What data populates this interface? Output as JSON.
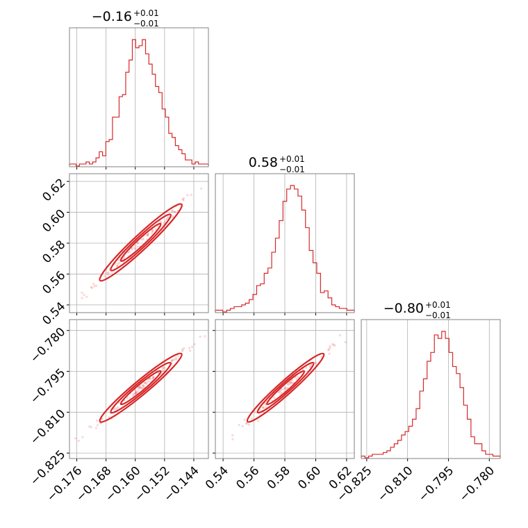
{
  "chart_data": {
    "type": "corner",
    "color": "#d62728",
    "params": [
      {
        "range": [
          -0.178,
          -0.14
        ],
        "ticks": [
          -0.176,
          -0.168,
          -0.16,
          -0.152,
          -0.144
        ],
        "tick_labels": [
          "−0.176",
          "−0.168",
          "−0.160",
          "−0.152",
          "−0.144"
        ],
        "title_main": "−0.16",
        "title_plus": "+0.01",
        "title_minus": "−0.01",
        "median": -0.1585,
        "sigma": 0.0052,
        "hist": [
          1,
          1,
          0,
          1,
          1,
          2,
          1,
          2,
          4,
          7,
          5,
          12,
          13,
          24,
          24,
          34,
          35,
          46,
          52,
          62,
          58,
          59,
          62,
          55,
          50,
          45,
          39,
          36,
          28,
          24,
          16,
          14,
          10,
          8,
          6,
          3,
          3,
          1,
          2,
          1,
          1,
          1
        ]
      },
      {
        "range": [
          0.535,
          0.625
        ],
        "ticks": [
          0.54,
          0.56,
          0.58,
          0.6,
          0.62
        ],
        "tick_labels": [
          "0.54",
          "0.56",
          "0.58",
          "0.60",
          "0.62"
        ],
        "title_main": "0.58",
        "title_plus": "+0.01",
        "title_minus": "−0.01",
        "median": 0.5805,
        "sigma": 0.0115,
        "hist": [
          1,
          1,
          0,
          1,
          2,
          3,
          3,
          4,
          5,
          7,
          10,
          15,
          16,
          22,
          25,
          34,
          42,
          52,
          63,
          70,
          72,
          70,
          66,
          58,
          48,
          35,
          28,
          22,
          11,
          12,
          8,
          4,
          3,
          2,
          2,
          1,
          1
        ]
      },
      {
        "range": [
          -0.827,
          -0.776
        ],
        "ticks": [
          -0.825,
          -0.81,
          -0.795,
          -0.78
        ],
        "tick_labels": [
          "−0.825",
          "−0.810",
          "−0.795",
          "−0.780"
        ],
        "title_main": "−0.80",
        "title_plus": "+0.01",
        "title_minus": "−0.01",
        "median": -0.801,
        "sigma": 0.0058,
        "hist": [
          1,
          0,
          1,
          2,
          2,
          2,
          3,
          4,
          6,
          8,
          10,
          13,
          15,
          18,
          22,
          28,
          38,
          45,
          55,
          60,
          70,
          68,
          72,
          68,
          60,
          52,
          48,
          40,
          30,
          22,
          12,
          8,
          8,
          4,
          2,
          2,
          1,
          1
        ]
      }
    ]
  }
}
